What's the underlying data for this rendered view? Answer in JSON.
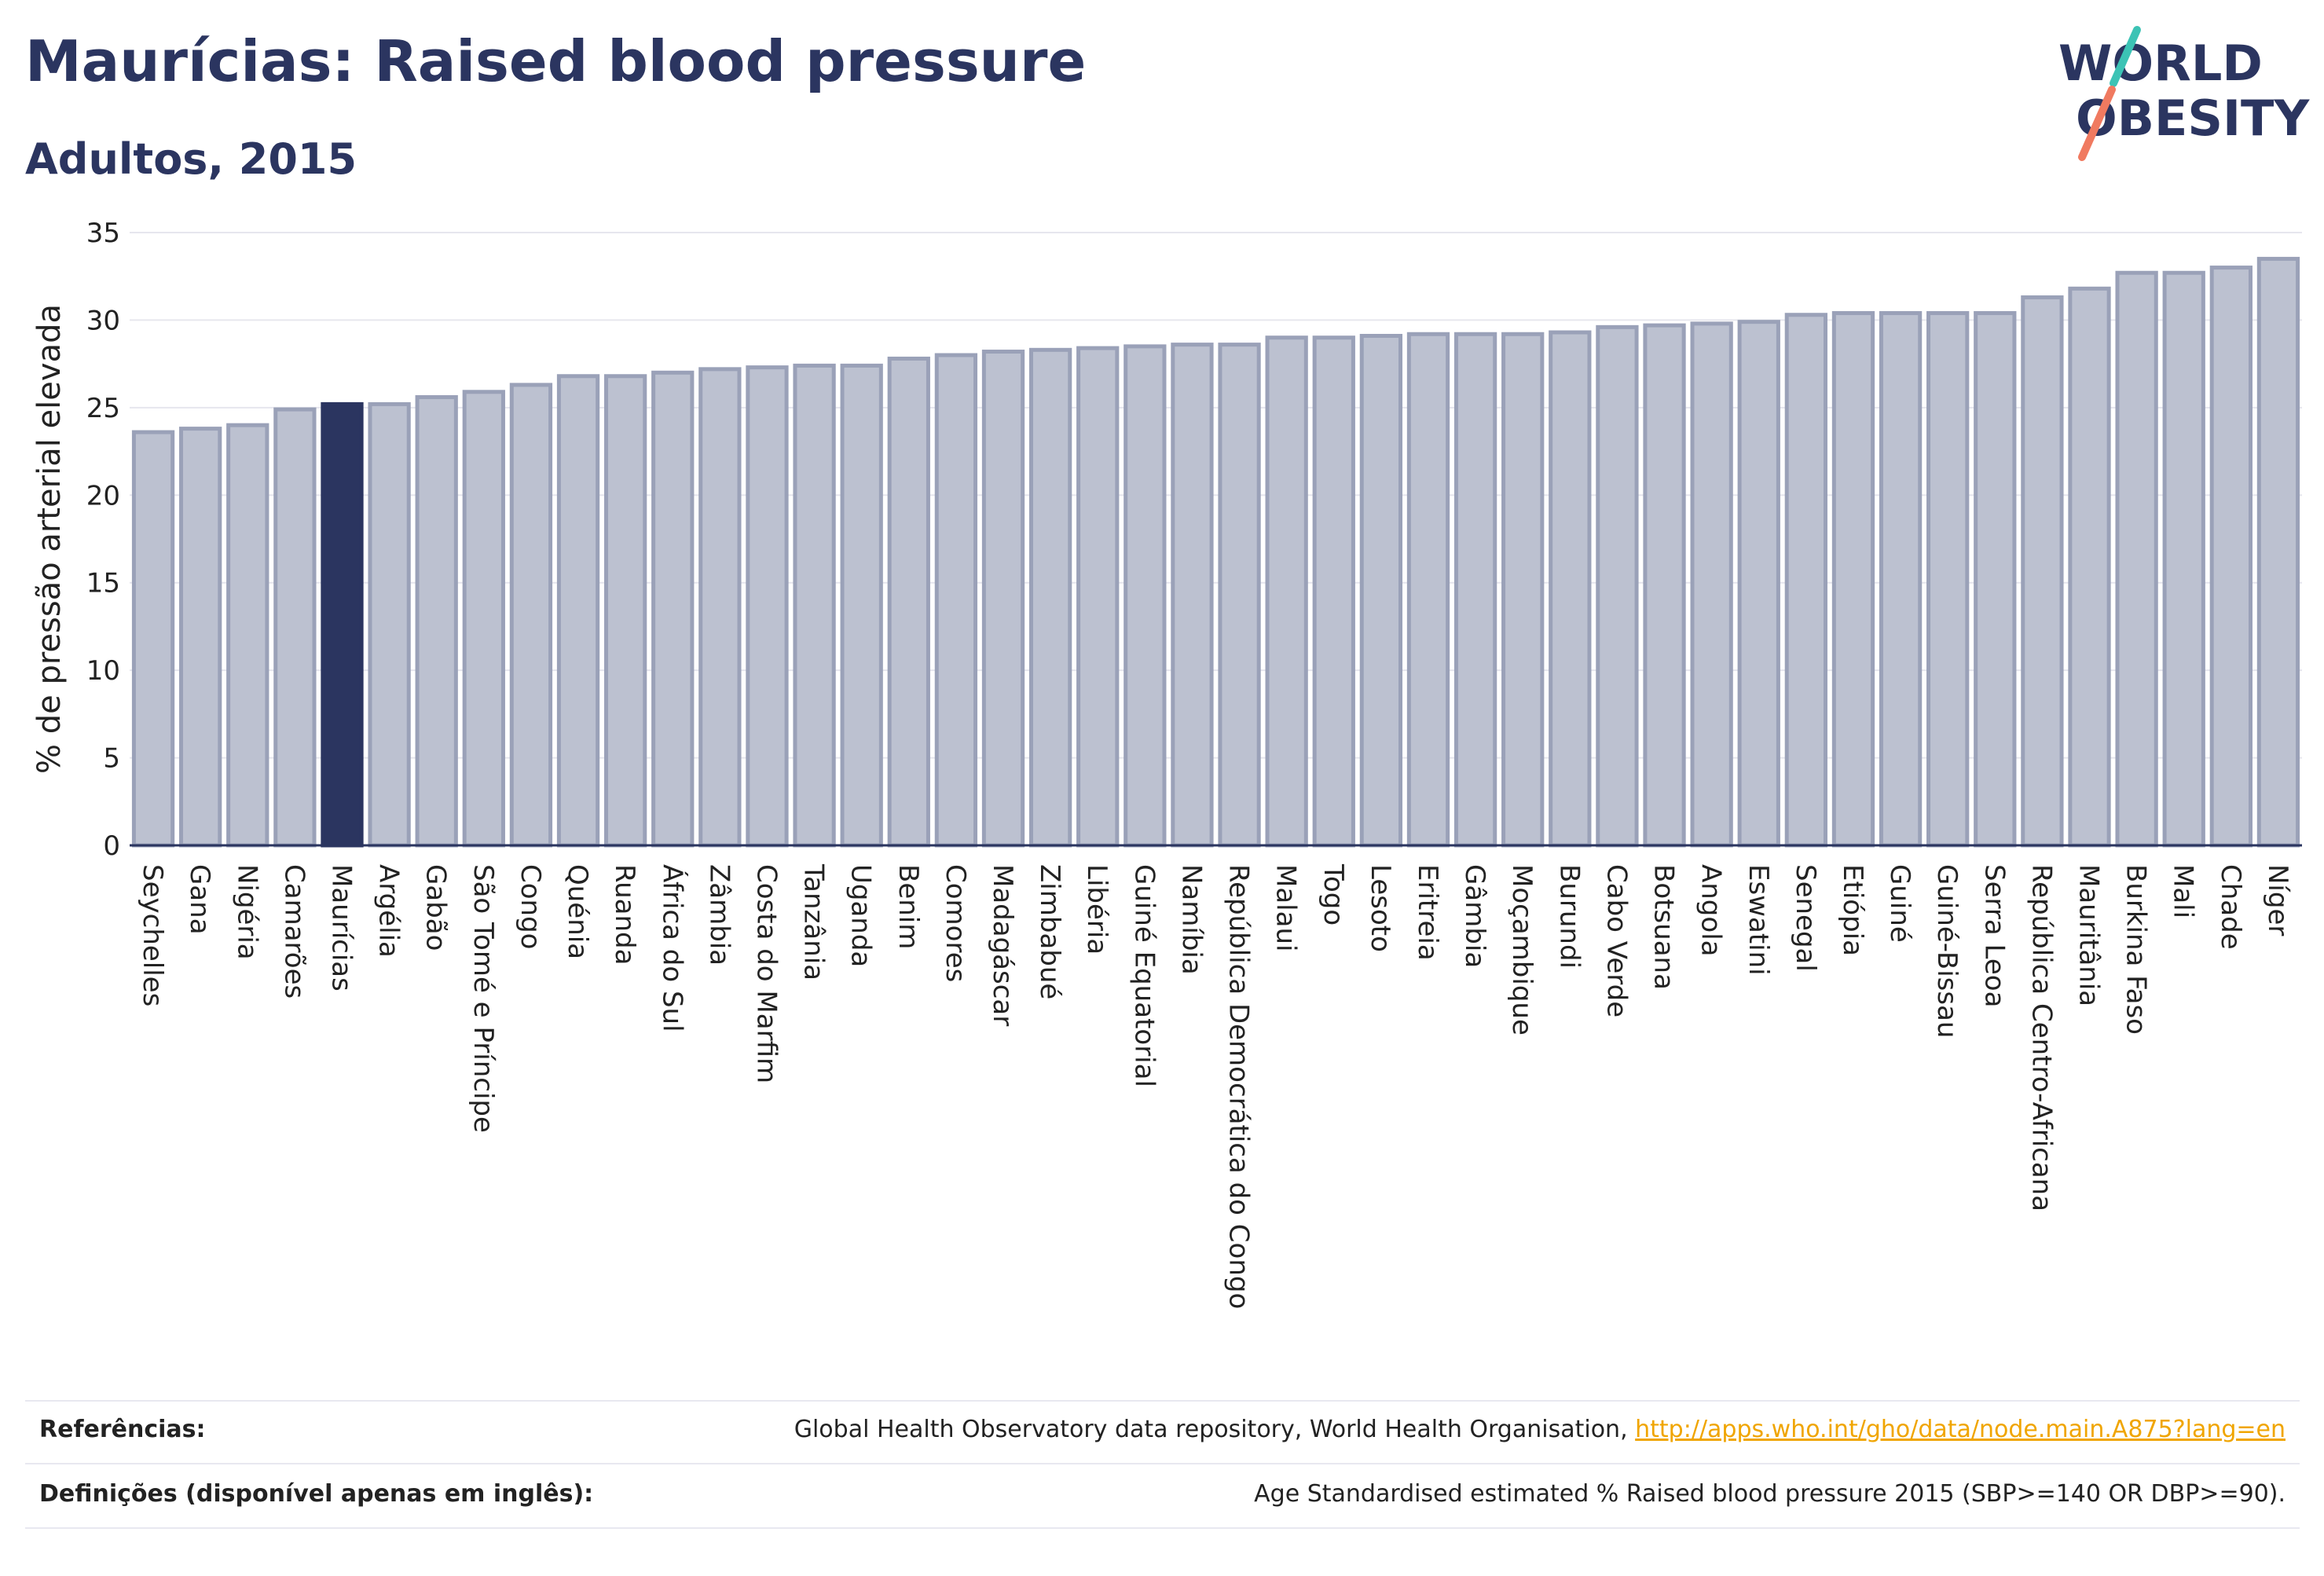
{
  "header": {
    "title": "Maurícias: Raised blood pressure",
    "subtitle": "Adultos, 2015"
  },
  "logo": {
    "line1": "WORLD",
    "line2": "OBESITY"
  },
  "colors": {
    "highlight": "#2b3560",
    "bar_fill": "#bcc1d0",
    "bar_stroke": "#9aa1b8",
    "link": "#f0a500"
  },
  "chart_data": {
    "type": "bar",
    "ylabel": "% de pressão arterial elevada",
    "xlabel": "",
    "ylim": [
      0,
      35
    ],
    "yticks": [
      0,
      5,
      10,
      15,
      20,
      25,
      30,
      35
    ],
    "grid": true,
    "highlight": "Maurícias",
    "categories": [
      "Seychelles",
      "Gana",
      "Nigéria",
      "Camarões",
      "Maurícias",
      "Argélia",
      "Gabão",
      "São Tomé e Príncipe",
      "Congo",
      "Quénia",
      "Ruanda",
      "África do Sul",
      "Zâmbia",
      "Costa do Marfim",
      "Tanzânia",
      "Uganda",
      "Benim",
      "Comores",
      "Madagáscar",
      "Zimbabué",
      "Libéria",
      "Guiné Equatorial",
      "Namíbia",
      "República Democrática do Congo",
      "Malaui",
      "Togo",
      "Lesoto",
      "Eritreia",
      "Gâmbia",
      "Moçambique",
      "Burundi",
      "Cabo Verde",
      "Botsuana",
      "Angola",
      "Eswatini",
      "Senegal",
      "Etiópia",
      "Guiné",
      "Guiné-Bissau",
      "Serra Leoa",
      "República Centro-Africana",
      "Mauritânia",
      "Burkina Faso",
      "Mali",
      "Chade",
      "Níger"
    ],
    "values": [
      23.6,
      23.8,
      24.0,
      24.9,
      25.2,
      25.2,
      25.6,
      25.9,
      26.3,
      26.8,
      26.8,
      27.0,
      27.2,
      27.3,
      27.4,
      27.4,
      27.8,
      28.0,
      28.2,
      28.3,
      28.4,
      28.5,
      28.6,
      28.6,
      29.0,
      29.0,
      29.1,
      29.2,
      29.2,
      29.2,
      29.3,
      29.6,
      29.7,
      29.8,
      29.9,
      30.3,
      30.4,
      30.4,
      30.4,
      30.4,
      31.3,
      31.8,
      32.7,
      32.7,
      33.0,
      33.5
    ]
  },
  "footer": {
    "references_label": "Referências:",
    "references_text": "Global Health Observatory data repository, World Health Organisation, ",
    "references_link": "http://apps.who.int/gho/data/node.main.A875?lang=en",
    "definitions_label": "Definições (disponível apenas em inglês):",
    "definitions_text": "Age Standardised estimated % Raised blood pressure 2015 (SBP>=140 OR DBP>=90)."
  }
}
